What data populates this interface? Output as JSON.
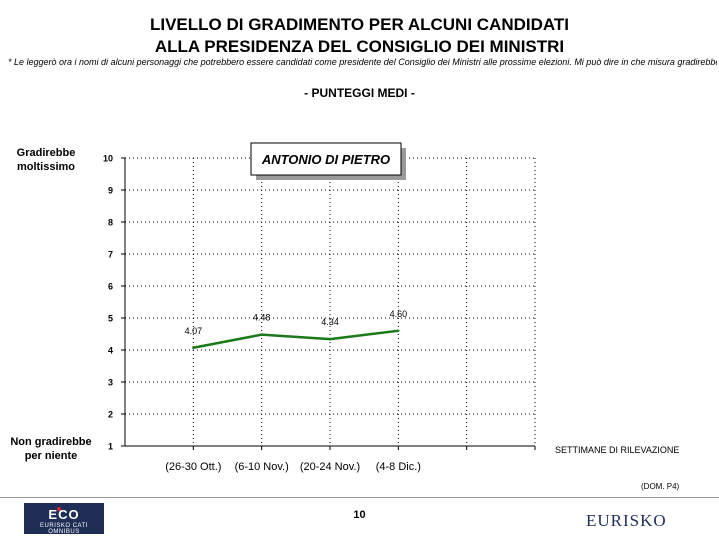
{
  "header": {
    "title_line1": "LIVELLO DI GRADIMENTO PER ALCUNI CANDIDATI",
    "title_line2": "ALLA PRESIDENZA DEL CONSIGLIO DEI MINISTRI",
    "note": "* Le leggerò ora i nomi di alcuni personaggi che potrebbero essere candidati come presidente del Consiglio dei Ministri alle prossime elezioni. Mi può dire in che misura gradirebbe ciascuno di essi in questo ruolo?",
    "subtitle": "- PUNTEGGI MEDI -"
  },
  "axis_labels": {
    "top_line1": "Gradirebbe",
    "top_line2": "moltissimo",
    "bottom_line1": "Non gradirebbe",
    "bottom_line2": "per niente",
    "x_title": "SETTIMANE DI RILEVAZIONE"
  },
  "chart_data": {
    "type": "line",
    "title": "ANTONIO DI PIETRO",
    "categories": [
      "(26-30 Ott.)",
      "(6-10 Nov.)",
      "(20-24 Nov.)",
      "(4-8 Dic.)"
    ],
    "series": [
      {
        "values": [
          4.07,
          4.48,
          4.34,
          4.6
        ],
        "labels": [
          "4.07",
          "4.48",
          "4.34",
          "4.60"
        ],
        "color": "#1a7a1a"
      }
    ],
    "ylim": [
      1,
      10
    ],
    "yticks": [
      1,
      2,
      3,
      4,
      5,
      6,
      7,
      8,
      9,
      10
    ],
    "n_slots": 6,
    "grid": "dotted",
    "xlabel": "",
    "ylabel": ""
  },
  "footer": {
    "dom": "(DOM. P4)",
    "page_number": "10",
    "eco_logo_big": "ECO",
    "eco_logo_small": "EURISKO CATI OMNIBUS",
    "eurisko_logo": "EURISKO"
  }
}
